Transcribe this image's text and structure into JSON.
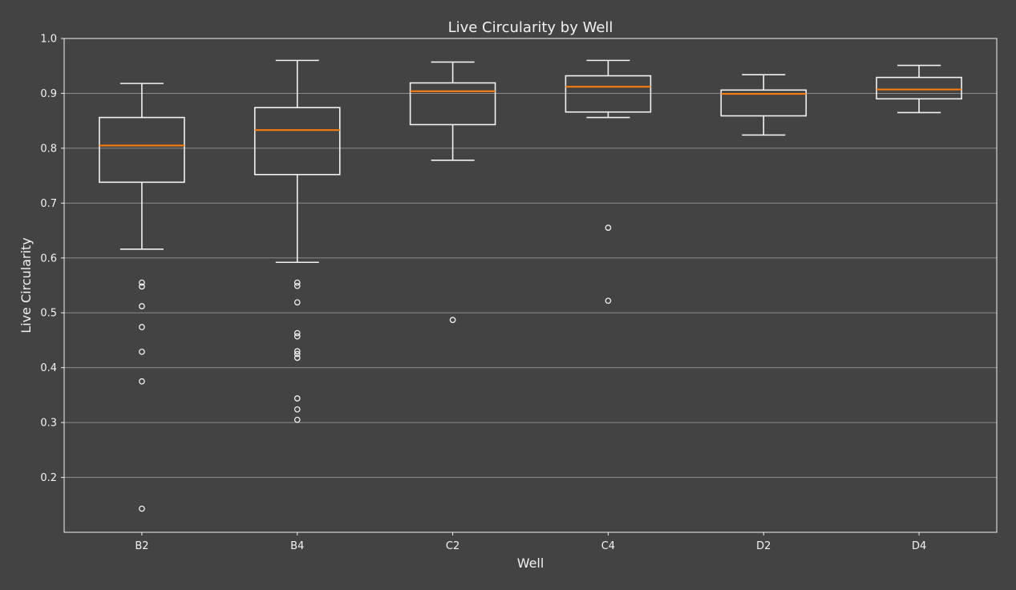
{
  "chart_data": {
    "type": "box",
    "title": "Live Circularity by Well",
    "xlabel": "Well",
    "ylabel": "Live Circularity",
    "categories": [
      "B2",
      "B4",
      "C2",
      "C4",
      "D2",
      "D4"
    ],
    "ylim": [
      0.1,
      1.0
    ],
    "yticks": [
      0.2,
      0.3,
      0.4,
      0.5,
      0.6,
      0.7,
      0.8,
      0.9,
      1.0
    ],
    "ytick_labels": [
      "0.2",
      "0.3",
      "0.4",
      "0.5",
      "0.6",
      "0.7",
      "0.8",
      "0.9",
      "1.0"
    ],
    "grid": "horizontal",
    "boxes": [
      {
        "well": "B2",
        "whisker_low": 0.616,
        "q1": 0.738,
        "median": 0.805,
        "q3": 0.856,
        "whisker_high": 0.918,
        "outliers": [
          0.555,
          0.548,
          0.512,
          0.474,
          0.429,
          0.375,
          0.143
        ]
      },
      {
        "well": "B4",
        "whisker_low": 0.592,
        "q1": 0.752,
        "median": 0.833,
        "q3": 0.874,
        "whisker_high": 0.96,
        "outliers": [
          0.555,
          0.549,
          0.519,
          0.463,
          0.457,
          0.43,
          0.425,
          0.418,
          0.344,
          0.324,
          0.305
        ]
      },
      {
        "well": "C2",
        "whisker_low": 0.778,
        "q1": 0.843,
        "median": 0.904,
        "q3": 0.919,
        "whisker_high": 0.957,
        "outliers": [
          0.487
        ]
      },
      {
        "well": "C4",
        "whisker_low": 0.856,
        "q1": 0.866,
        "median": 0.912,
        "q3": 0.932,
        "whisker_high": 0.96,
        "outliers": [
          0.655,
          0.522
        ]
      },
      {
        "well": "D2",
        "whisker_low": 0.824,
        "q1": 0.859,
        "median": 0.899,
        "q3": 0.906,
        "whisker_high": 0.934,
        "outliers": []
      },
      {
        "well": "D4",
        "whisker_low": 0.865,
        "q1": 0.89,
        "median": 0.907,
        "q3": 0.929,
        "whisker_high": 0.951,
        "outliers": []
      }
    ],
    "colors": {
      "background": "#434343",
      "box": "#f2f2f2",
      "median": "#ff7f0e",
      "grid": "#8a8a8a",
      "text": "#f2f2f2"
    }
  }
}
